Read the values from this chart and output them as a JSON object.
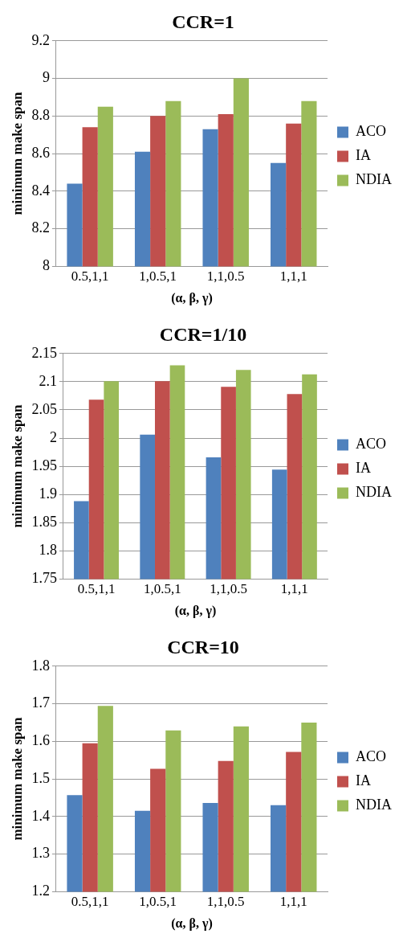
{
  "chart_data": [
    {
      "type": "bar",
      "title": "CCR=1",
      "xlabel": "(α, β, γ)",
      "ylabel": "minimum make span",
      "categories": [
        "0.5,1,1",
        "1,0.5,1",
        "1,1,0.5",
        "1,1,1"
      ],
      "ylim": [
        8,
        9.2
      ],
      "yticks": [
        8,
        8.2,
        8.4,
        8.6,
        8.8,
        9,
        9.2
      ],
      "grid": "y",
      "legend": "right",
      "series": [
        {
          "name": "ACO",
          "color": "#4f81bd",
          "values": [
            8.44,
            8.61,
            8.73,
            8.55
          ]
        },
        {
          "name": "IA",
          "color": "#c0504d",
          "values": [
            8.74,
            8.8,
            8.81,
            8.76
          ]
        },
        {
          "name": "NDIA",
          "color": "#9bbb59",
          "values": [
            8.85,
            8.88,
            9.0,
            8.88
          ]
        }
      ]
    },
    {
      "type": "bar",
      "title": "CCR=1/10",
      "xlabel": "(α, β, γ)",
      "ylabel": "minimum make span",
      "categories": [
        "0.5,1,1",
        "1,0.5,1",
        "1,1,0.5",
        "1,1,1"
      ],
      "ylim": [
        1.75,
        2.15
      ],
      "yticks": [
        1.75,
        1.8,
        1.85,
        1.9,
        1.95,
        2,
        2.05,
        2.1,
        2.15
      ],
      "grid": "y",
      "legend": "right",
      "series": [
        {
          "name": "ACO",
          "color": "#4f81bd",
          "values": [
            1.888,
            2.006,
            1.966,
            1.944
          ]
        },
        {
          "name": "IA",
          "color": "#c0504d",
          "values": [
            2.068,
            2.101,
            2.091,
            2.078
          ]
        },
        {
          "name": "NDIA",
          "color": "#9bbb59",
          "values": [
            2.101,
            2.129,
            2.121,
            2.113
          ]
        }
      ]
    },
    {
      "type": "bar",
      "title": "CCR=10",
      "xlabel": "(α, β, γ)",
      "ylabel": "minimum make span",
      "categories": [
        "0.5,1,1",
        "1,0.5,1",
        "1,1,0.5",
        "1,1,1"
      ],
      "ylim": [
        1.2,
        1.8
      ],
      "yticks": [
        1.2,
        1.3,
        1.4,
        1.5,
        1.6,
        1.7,
        1.8
      ],
      "grid": "y",
      "legend": "right",
      "series": [
        {
          "name": "ACO",
          "color": "#4f81bd",
          "values": [
            1.457,
            1.415,
            1.436,
            1.43
          ]
        },
        {
          "name": "IA",
          "color": "#c0504d",
          "values": [
            1.595,
            1.527,
            1.548,
            1.572
          ]
        },
        {
          "name": "NDIA",
          "color": "#9bbb59",
          "values": [
            1.694,
            1.629,
            1.64,
            1.65
          ]
        }
      ]
    }
  ]
}
